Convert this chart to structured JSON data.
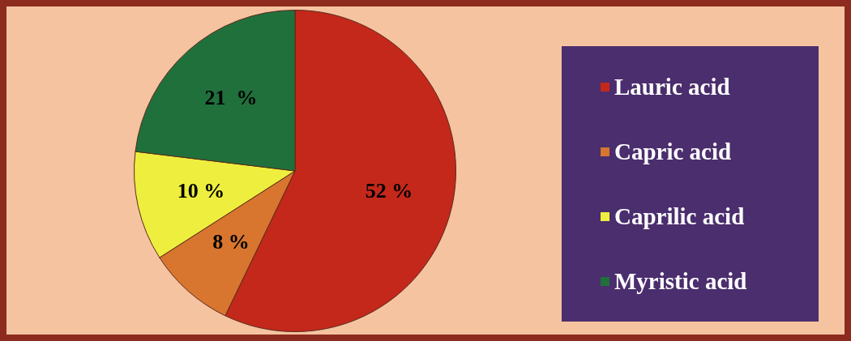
{
  "chart_data": {
    "type": "pie",
    "categories": [
      "Lauric acid",
      "Capric acid",
      "Caprilic acid",
      "Myristic acid"
    ],
    "values": [
      52,
      8,
      10,
      21
    ],
    "colors": [
      "#c3281b",
      "#d8752f",
      "#eeee3e",
      "#20703c"
    ],
    "value_labels": [
      "52 %",
      "8 %",
      "10 %",
      "21  %"
    ],
    "legend": "right"
  }
}
